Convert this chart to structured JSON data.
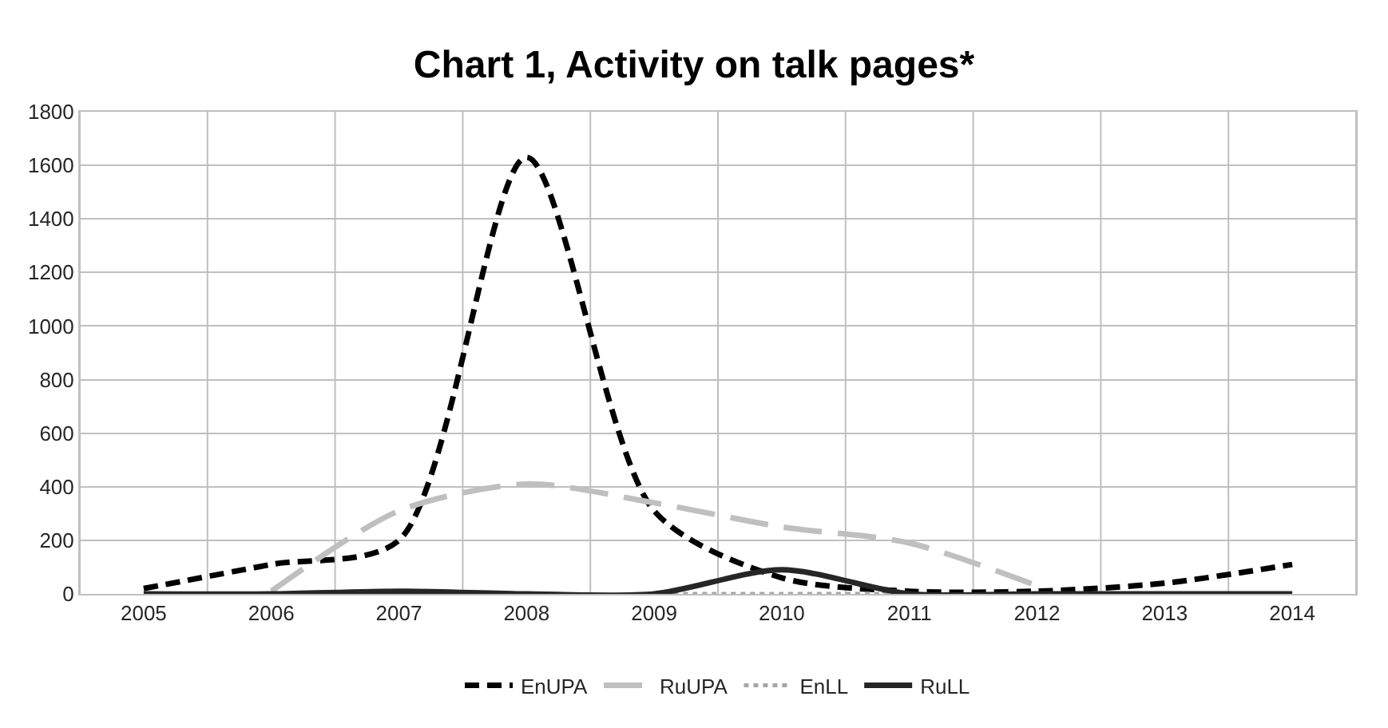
{
  "chart_data": {
    "type": "line",
    "title": "Chart 1, Activity on talk pages*",
    "categories": [
      "2005",
      "2006",
      "2007",
      "2008",
      "2009",
      "2010",
      "2011",
      "2012",
      "2013",
      "2014"
    ],
    "series": [
      {
        "name": "EnUPA",
        "color": "#000000",
        "line_style": "dashed",
        "values": [
          20,
          110,
          200,
          1630,
          310,
          60,
          10,
          10,
          40,
          110
        ]
      },
      {
        "name": "RuUPA",
        "color": "#bfbfbf",
        "line_style": "dashed",
        "values": [
          null,
          10,
          310,
          410,
          340,
          250,
          190,
          30,
          null,
          null
        ]
      },
      {
        "name": "EnLL",
        "color": "#a6a6a6",
        "line_style": "dotted",
        "values": [
          null,
          null,
          null,
          null,
          0,
          0,
          0,
          null,
          null,
          null
        ]
      },
      {
        "name": "RuLL",
        "color": "#262626",
        "line_style": "solid",
        "values": [
          0,
          0,
          10,
          0,
          0,
          90,
          0,
          0,
          0,
          0
        ]
      }
    ],
    "ylim": [
      0,
      1800
    ],
    "yticks": [
      0,
      200,
      400,
      600,
      800,
      1000,
      1200,
      1400,
      1600,
      1800
    ],
    "grid": true,
    "legend": "bottom",
    "marker": "none"
  }
}
